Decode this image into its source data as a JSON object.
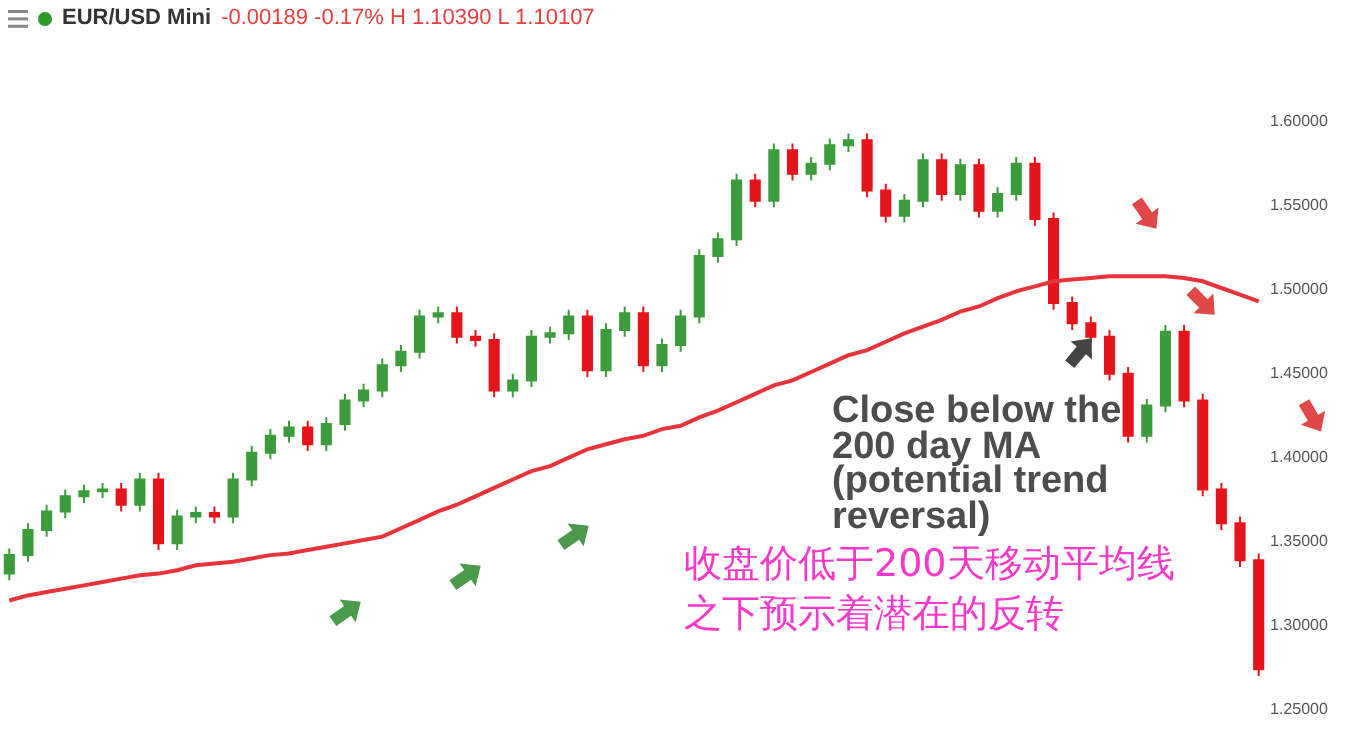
{
  "chart_data": {
    "type": "candlestick",
    "title": "EUR/USD Mini",
    "subtitle": "-0.00189 -0.17% H 1.10390 L 1.10107",
    "categories": [
      null,
      null,
      null,
      null,
      null,
      null,
      null,
      null,
      null,
      null,
      null,
      null,
      null,
      null,
      null,
      null,
      null,
      null,
      null,
      null,
      null,
      null,
      null,
      null,
      null,
      null,
      null,
      null,
      null,
      null,
      null,
      null,
      null,
      null,
      null,
      null,
      null,
      null,
      null,
      null,
      null,
      null,
      null,
      null,
      null,
      null,
      null,
      null,
      null,
      null,
      null,
      null,
      null,
      null,
      null,
      null,
      null,
      null,
      null,
      null,
      null,
      null,
      null,
      null,
      null,
      null,
      null,
      null
    ],
    "ohlc": [
      [
        1.33,
        1.345,
        1.326,
        1.341
      ],
      [
        1.341,
        1.36,
        1.337,
        1.356
      ],
      [
        1.356,
        1.371,
        1.352,
        1.367
      ],
      [
        1.367,
        1.38,
        1.363,
        1.376
      ],
      [
        1.376,
        1.383,
        1.372,
        1.379
      ],
      [
        1.379,
        1.384,
        1.375,
        1.38
      ],
      [
        1.38,
        1.384,
        1.367,
        1.371
      ],
      [
        1.371,
        1.39,
        1.367,
        1.386
      ],
      [
        1.386,
        1.39,
        1.344,
        1.348
      ],
      [
        1.348,
        1.368,
        1.344,
        1.364
      ],
      [
        1.364,
        1.37,
        1.36,
        1.366
      ],
      [
        1.366,
        1.37,
        1.36,
        1.364
      ],
      [
        1.364,
        1.39,
        1.36,
        1.386
      ],
      [
        1.386,
        1.406,
        1.382,
        1.402
      ],
      [
        1.402,
        1.416,
        1.398,
        1.412
      ],
      [
        1.412,
        1.421,
        1.408,
        1.417
      ],
      [
        1.417,
        1.421,
        1.403,
        1.407
      ],
      [
        1.407,
        1.423,
        1.403,
        1.419
      ],
      [
        1.419,
        1.437,
        1.415,
        1.433
      ],
      [
        1.433,
        1.443,
        1.429,
        1.439
      ],
      [
        1.439,
        1.458,
        1.435,
        1.454
      ],
      [
        1.454,
        1.466,
        1.45,
        1.462
      ],
      [
        1.462,
        1.487,
        1.458,
        1.483
      ],
      [
        1.483,
        1.489,
        1.479,
        1.485
      ],
      [
        1.485,
        1.489,
        1.467,
        1.471
      ],
      [
        1.471,
        1.475,
        1.465,
        1.469
      ],
      [
        1.469,
        1.473,
        1.435,
        1.439
      ],
      [
        1.439,
        1.449,
        1.435,
        1.445
      ],
      [
        1.445,
        1.475,
        1.441,
        1.471
      ],
      [
        1.471,
        1.477,
        1.467,
        1.473
      ],
      [
        1.473,
        1.487,
        1.469,
        1.483
      ],
      [
        1.483,
        1.487,
        1.447,
        1.451
      ],
      [
        1.451,
        1.479,
        1.447,
        1.475
      ],
      [
        1.475,
        1.489,
        1.471,
        1.485
      ],
      [
        1.485,
        1.489,
        1.45,
        1.454
      ],
      [
        1.454,
        1.47,
        1.45,
        1.466
      ],
      [
        1.466,
        1.487,
        1.462,
        1.483
      ],
      [
        1.483,
        1.523,
        1.479,
        1.519
      ],
      [
        1.519,
        1.533,
        1.515,
        1.529
      ],
      [
        1.529,
        1.568,
        1.525,
        1.564
      ],
      [
        1.564,
        1.568,
        1.548,
        1.552
      ],
      [
        1.552,
        1.586,
        1.548,
        1.582
      ],
      [
        1.582,
        1.586,
        1.564,
        1.568
      ],
      [
        1.568,
        1.578,
        1.564,
        1.574
      ],
      [
        1.574,
        1.589,
        1.57,
        1.585
      ],
      [
        1.585,
        1.592,
        1.581,
        1.588
      ],
      [
        1.588,
        1.592,
        1.554,
        1.558
      ],
      [
        1.558,
        1.562,
        1.539,
        1.543
      ],
      [
        1.543,
        1.556,
        1.539,
        1.552
      ],
      [
        1.552,
        1.58,
        1.548,
        1.576
      ],
      [
        1.576,
        1.58,
        1.552,
        1.556
      ],
      [
        1.556,
        1.577,
        1.552,
        1.573
      ],
      [
        1.573,
        1.577,
        1.542,
        1.546
      ],
      [
        1.546,
        1.56,
        1.542,
        1.556
      ],
      [
        1.556,
        1.578,
        1.552,
        1.574
      ],
      [
        1.574,
        1.578,
        1.537,
        1.541
      ],
      [
        1.541,
        1.545,
        1.487,
        1.491
      ],
      [
        1.491,
        1.495,
        1.475,
        1.479
      ],
      [
        1.479,
        1.483,
        1.467,
        1.471
      ],
      [
        1.471,
        1.475,
        1.445,
        1.449
      ],
      [
        1.449,
        1.453,
        1.408,
        1.412
      ],
      [
        1.412,
        1.434,
        1.408,
        1.43
      ],
      [
        1.43,
        1.478,
        1.426,
        1.474
      ],
      [
        1.474,
        1.478,
        1.429,
        1.433
      ],
      [
        1.433,
        1.437,
        1.376,
        1.38
      ],
      [
        1.38,
        1.384,
        1.356,
        1.36
      ],
      [
        1.36,
        1.364,
        1.334,
        1.338
      ],
      [
        1.338,
        1.342,
        1.269,
        1.273
      ]
    ],
    "series": [
      {
        "type": "line",
        "color": "#e8333a",
        "values": [
          1.314,
          1.317,
          1.319,
          1.321,
          1.323,
          1.325,
          1.327,
          1.329,
          1.33,
          1.332,
          1.335,
          1.336,
          1.337,
          1.339,
          1.341,
          1.342,
          1.344,
          1.346,
          1.348,
          1.35,
          1.352,
          1.357,
          1.362,
          1.367,
          1.371,
          1.376,
          1.381,
          1.386,
          1.391,
          1.394,
          1.399,
          1.404,
          1.407,
          1.41,
          1.412,
          1.416,
          1.418,
          1.423,
          1.427,
          1.432,
          1.437,
          1.442,
          1.445,
          1.45,
          1.455,
          1.46,
          1.463,
          1.468,
          1.473,
          1.477,
          1.481,
          1.486,
          1.489,
          1.494,
          1.498,
          1.501,
          1.504,
          1.505,
          1.506,
          1.507,
          1.507,
          1.507,
          1.507,
          1.506,
          1.504,
          1.5,
          1.496,
          1.492
        ]
      }
    ],
    "ylim": [
      1.25,
      1.6
    ],
    "yticks": [
      {
        "value": 1.25,
        "label": "1.25000"
      },
      {
        "value": 1.3,
        "label": "1.30000"
      },
      {
        "value": 1.35,
        "label": "1.35000"
      },
      {
        "value": 1.4,
        "label": "1.40000"
      },
      {
        "value": 1.45,
        "label": "1.45000"
      },
      {
        "value": 1.5,
        "label": "1.50000"
      },
      {
        "value": 1.55,
        "label": "1.55000"
      },
      {
        "value": 1.6,
        "label": "1.60000"
      }
    ],
    "annotations": [
      "Close below the 200 day MA (potential trend reversal)",
      "收盘价低于200天移动平均线之下预示着潜在的反转"
    ]
  }
}
